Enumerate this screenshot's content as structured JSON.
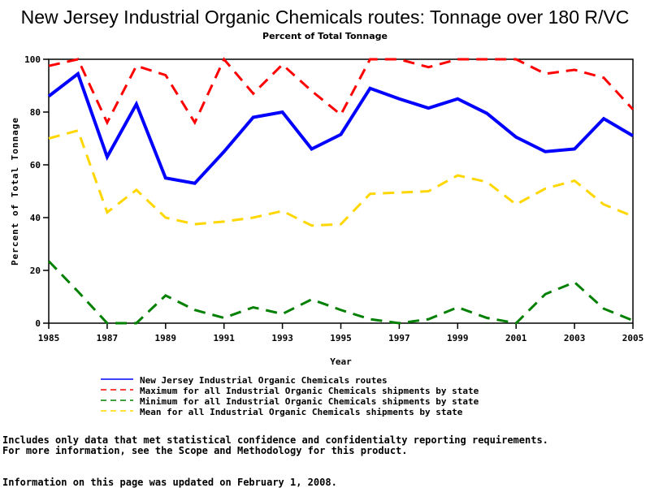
{
  "chart_data": {
    "type": "line",
    "title": "New Jersey Industrial Organic Chemicals routes: Tonnage over 180 R/VC",
    "subtitle": "Percent of Total Tonnage",
    "xlabel": "Year",
    "ylabel": "Percent of Total Tonnage",
    "xlim": [
      1985,
      2005
    ],
    "ylim": [
      0,
      100
    ],
    "xticks": [
      "1985",
      "1987",
      "1989",
      "1991",
      "1993",
      "1995",
      "1997",
      "1999",
      "2001",
      "2003",
      "2005"
    ],
    "yticks": [
      "0",
      "20",
      "40",
      "60",
      "80",
      "100"
    ],
    "grid": false,
    "legend_position": "bottom",
    "x": [
      1985,
      1986,
      1987,
      1988,
      1989,
      1990,
      1991,
      1992,
      1993,
      1994,
      1995,
      1996,
      1997,
      1998,
      1999,
      2000,
      2001,
      2002,
      2003,
      2004,
      2005
    ],
    "series": [
      {
        "name": "New Jersey Industrial Organic Chemicals routes",
        "color": "#0000ff",
        "style": "solid",
        "values": [
          86,
          94.5,
          63,
          83,
          55,
          53,
          65,
          78,
          80,
          66,
          71.5,
          89,
          85,
          81.5,
          85,
          79.5,
          70.5,
          65,
          66,
          77.5,
          71
        ]
      },
      {
        "name": "Maximum for all Industrial Organic Chemicals shipments by state",
        "color": "#ff0000",
        "style": "dashed",
        "values": [
          97.5,
          100,
          76,
          97.5,
          94,
          76,
          100,
          87,
          98,
          88,
          79,
          100,
          100,
          97,
          100,
          100,
          100,
          94.5,
          96,
          93,
          81
        ]
      },
      {
        "name": "Minimum for all Industrial Organic Chemicals shipments by state",
        "color": "#008000",
        "style": "dashed",
        "values": [
          23.5,
          12,
          0,
          0,
          10.5,
          5,
          2,
          6,
          3.5,
          9,
          5,
          1.5,
          0,
          1.5,
          6,
          2,
          0,
          11,
          15.5,
          5.5,
          1
        ]
      },
      {
        "name": "Mean for all Industrial Organic Chemicals shipments by state",
        "color": "#ffd700",
        "style": "dashed",
        "values": [
          70,
          73,
          42,
          50.5,
          40,
          37.5,
          38.5,
          40,
          42.5,
          37,
          37.5,
          49,
          49.5,
          50,
          56,
          53.5,
          45,
          51,
          54,
          45,
          40.5
        ]
      }
    ]
  },
  "notes": {
    "line1": "Includes only data that met statistical confidence and confidentialty reporting requirements.",
    "line2": "For more information, see the Scope and Methodology for this product.",
    "updated": "Information on this page was updated on February 1, 2008."
  }
}
